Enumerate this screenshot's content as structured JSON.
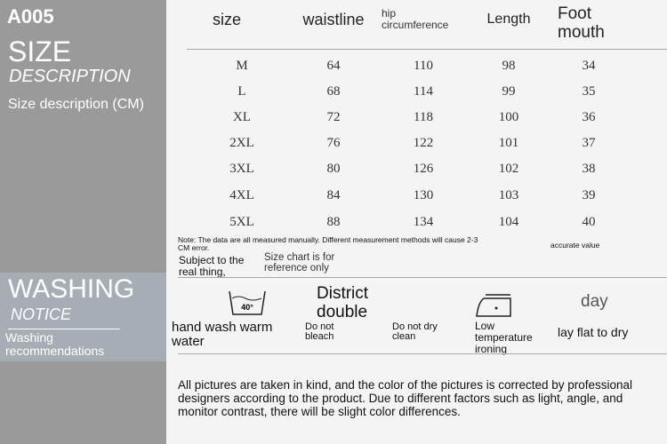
{
  "left": {
    "code": "A005",
    "size_title": "SIZE",
    "size_sub": "DESCRIPTION",
    "size_desc": "Size description (CM)",
    "wash_title": "WASHING",
    "wash_sub": "NOTICE",
    "wash_desc_1": "Washing",
    "wash_desc_2": "recommendations"
  },
  "table": {
    "headers": [
      "size",
      "waistline",
      "hip circumference",
      "Length",
      "Foot mouth"
    ],
    "rows": [
      [
        "M",
        "64",
        "110",
        "98",
        "34"
      ],
      [
        "L",
        "68",
        "114",
        "99",
        "35"
      ],
      [
        "XL",
        "72",
        "118",
        "100",
        "36"
      ],
      [
        "2XL",
        "76",
        "122",
        "101",
        "37"
      ],
      [
        "3XL",
        "80",
        "126",
        "102",
        "38"
      ],
      [
        "4XL",
        "84",
        "130",
        "103",
        "39"
      ],
      [
        "5XL",
        "88",
        "134",
        "104",
        "40"
      ]
    ]
  },
  "notes": {
    "note": "Note: The data are all measured manually. Different measurement methods will cause 2-3",
    "cm_error": "CM error.",
    "accurate": "accurate value",
    "subject": "Subject to the real thing,",
    "reference": "Size chart is for reference only"
  },
  "washing": {
    "temp": "40°",
    "hand_wash": "hand wash warm water",
    "district": "District double",
    "no_bleach": "Do not bleach",
    "no_dry_clean": "Do not dry clean",
    "low_iron": "Low temperature ironing",
    "day": "day",
    "lay_flat": "lay flat to dry"
  },
  "disclaimer": "All pictures are taken in kind, and the color of the pictures is corrected by professional designers according to the product. Due to different factors such as light, angle, and monitor contrast, there will be slight color differences."
}
